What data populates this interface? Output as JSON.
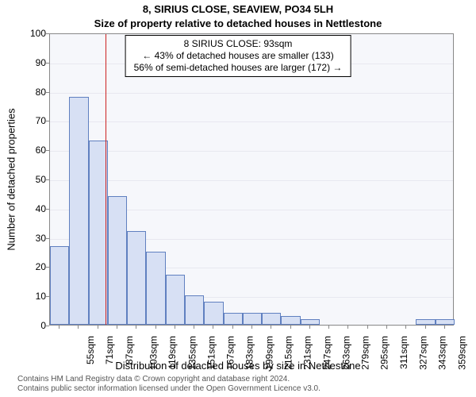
{
  "chart": {
    "type": "histogram",
    "title": "8, SIRIUS CLOSE, SEAVIEW, PO34 5LH",
    "title_fontsize": 13,
    "subtitle": "Size of property relative to detached houses in Nettlestone",
    "subtitle_fontsize": 13,
    "xlabel": "Distribution of detached houses by size in Nettlestone",
    "ylabel": "Number of detached properties",
    "label_fontsize": 13,
    "tick_fontsize": 12,
    "annotation": {
      "line1": "8 SIRIUS CLOSE: 93sqm",
      "line2": "← 43% of detached houses are smaller (133)",
      "line3": "56% of semi-detached houses are larger (172) →",
      "fontsize": 12,
      "border_color": "#000000",
      "background": "#ffffff"
    },
    "x_tick_start": 55,
    "x_tick_step": 16,
    "x_tick_count": 21,
    "x_tick_suffix": "sqm",
    "y_ticks": [
      0,
      10,
      20,
      30,
      40,
      50,
      60,
      70,
      80,
      90,
      100
    ],
    "ylim": [
      0,
      100
    ],
    "bars": {
      "bin_start": 47,
      "bin_width": 16,
      "values": [
        27,
        78,
        63,
        44,
        32,
        25,
        17,
        10,
        8,
        4,
        4,
        4,
        3,
        2,
        0,
        0,
        0,
        0,
        0,
        2,
        2
      ],
      "fill_color": "#d7e0f4",
      "border_color": "#6080c0",
      "bar_gap_ratio": 0.0
    },
    "reference_line": {
      "x_value": 93,
      "color": "#cc2222"
    },
    "plot": {
      "background_color": "#f6f7fb",
      "grid_color": "#e8e8f0",
      "border_color": "#888888"
    },
    "footer": {
      "line1": "Contains HM Land Registry data © Crown copyright and database right 2024.",
      "line2": "Contains public sector information licensed under the Open Government Licence v3.0.",
      "fontsize": 10,
      "color": "#555555"
    }
  }
}
